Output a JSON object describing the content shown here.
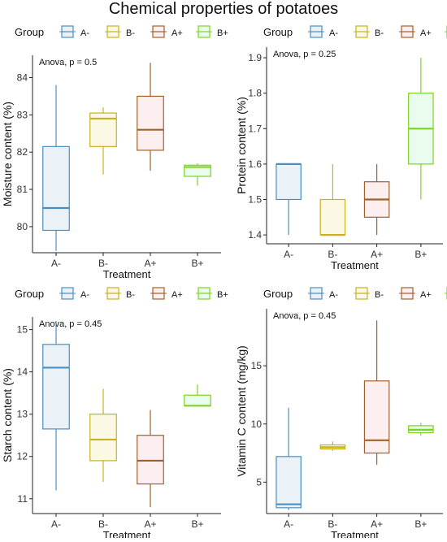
{
  "title": "Chemical properties of potatoes",
  "legend": {
    "title": "Group",
    "entries": [
      {
        "label": "A-",
        "color": "#4a8fbf",
        "fill": "#eaf2f8"
      },
      {
        "label": "B-",
        "color": "#c9b21e",
        "fill": "#fbf8e6"
      },
      {
        "label": "A+",
        "color": "#a0622d",
        "fill": "#fdeef0"
      },
      {
        "label": "B+",
        "color": "#7ed321",
        "fill": "#eafced"
      }
    ]
  },
  "chart_data": [
    {
      "type": "box",
      "annotation": "Anova, p = 0.5",
      "xlabel": "Treatment",
      "ylabel": "Moisture content (%)",
      "ylim": [
        79.3,
        84.6
      ],
      "yticks": [
        80,
        81,
        82,
        83,
        84
      ],
      "categories": [
        "A-",
        "B-",
        "A+",
        "B+"
      ],
      "boxes": [
        {
          "group": "A-",
          "min": 79.35,
          "q1": 79.9,
          "median": 80.5,
          "q3": 82.15,
          "max": 83.8
        },
        {
          "group": "B-",
          "min": 81.4,
          "q1": 82.15,
          "median": 82.9,
          "q3": 83.05,
          "max": 83.2
        },
        {
          "group": "A+",
          "min": 81.5,
          "q1": 82.05,
          "median": 82.6,
          "q3": 83.5,
          "max": 84.4
        },
        {
          "group": "B+",
          "min": 81.1,
          "q1": 81.35,
          "median": 81.6,
          "q3": 81.65,
          "max": 81.7
        }
      ]
    },
    {
      "type": "box",
      "annotation": "Anova, p = 0.25",
      "xlabel": "Treatment",
      "ylabel": "Protein content (%)",
      "ylim": [
        1.375,
        1.93
      ],
      "yticks": [
        1.4,
        1.5,
        1.6,
        1.7,
        1.8,
        1.9
      ],
      "categories": [
        "A-",
        "B-",
        "A+",
        "B+"
      ],
      "boxes": [
        {
          "group": "A-",
          "min": 1.4,
          "q1": 1.5,
          "median": 1.6,
          "q3": 1.6,
          "max": 1.6
        },
        {
          "group": "B-",
          "min": 1.4,
          "q1": 1.4,
          "median": 1.4,
          "q3": 1.5,
          "max": 1.6
        },
        {
          "group": "A+",
          "min": 1.4,
          "q1": 1.45,
          "median": 1.5,
          "q3": 1.55,
          "max": 1.6
        },
        {
          "group": "B+",
          "min": 1.5,
          "q1": 1.6,
          "median": 1.7,
          "q3": 1.8,
          "max": 1.9
        }
      ]
    },
    {
      "type": "box",
      "annotation": "Anova, p = 0.45",
      "xlabel": "Treatment",
      "ylabel": "Starch content (%)",
      "ylim": [
        10.65,
        15.3
      ],
      "yticks": [
        11,
        12,
        13,
        14,
        15
      ],
      "categories": [
        "A-",
        "B-",
        "A+",
        "B+"
      ],
      "boxes": [
        {
          "group": "A-",
          "min": 11.2,
          "q1": 12.65,
          "median": 14.1,
          "q3": 14.65,
          "max": 15.2
        },
        {
          "group": "B-",
          "min": 11.4,
          "q1": 11.9,
          "median": 12.4,
          "q3": 13.0,
          "max": 13.6
        },
        {
          "group": "A+",
          "min": 10.8,
          "q1": 11.35,
          "median": 11.9,
          "q3": 12.5,
          "max": 13.1
        },
        {
          "group": "B+",
          "min": 13.2,
          "q1": 13.2,
          "median": 13.2,
          "q3": 13.45,
          "max": 13.7
        }
      ]
    },
    {
      "type": "box",
      "annotation": "Anova, p = 0.45",
      "xlabel": "Treatment",
      "ylabel": "Vitamin C content (mg/kg)",
      "ylim": [
        2.3,
        19.9
      ],
      "yticks": [
        5,
        10,
        15
      ],
      "categories": [
        "A-",
        "B-",
        "A+",
        "B+"
      ],
      "boxes": [
        {
          "group": "A-",
          "min": 2.6,
          "q1": 2.8,
          "median": 3.1,
          "q3": 7.2,
          "max": 11.4
        },
        {
          "group": "B-",
          "min": 7.7,
          "q1": 7.85,
          "median": 8.0,
          "q3": 8.2,
          "max": 8.5
        },
        {
          "group": "A+",
          "min": 6.5,
          "q1": 7.5,
          "median": 8.6,
          "q3": 13.7,
          "max": 18.9
        },
        {
          "group": "B+",
          "min": 9.0,
          "q1": 9.25,
          "median": 9.5,
          "q3": 9.85,
          "max": 10.1
        }
      ]
    }
  ]
}
